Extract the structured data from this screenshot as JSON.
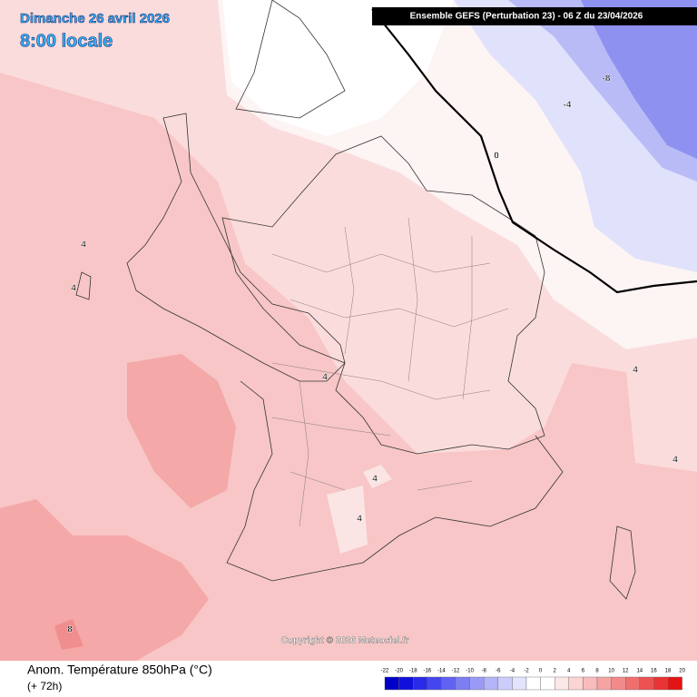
{
  "header": {
    "date": "Dimanche 26 avril 2026",
    "time": "8:00 locale",
    "run": "Ensemble GEFS  (Perturbation 23)  -  06 Z du 23/04/2026"
  },
  "map": {
    "contour_labels": [
      -8,
      -4,
      0,
      4,
      4,
      4,
      4,
      4,
      4,
      4,
      8
    ],
    "copyright": "Copyright © 2026 Meteociel.fr"
  },
  "footer": {
    "variable": "Anom. Température 850hPa (°C)",
    "lead": "(+ 72h)",
    "colorbar": {
      "labels": [
        -22,
        -20,
        -18,
        -16,
        -14,
        -12,
        -10,
        -8,
        -6,
        -4,
        -2,
        0,
        2,
        4,
        6,
        8,
        10,
        12,
        14,
        16,
        18,
        20
      ],
      "colors": [
        "#0000c8",
        "#1010dc",
        "#2a2ae8",
        "#4646ee",
        "#6262f2",
        "#7e7ef4",
        "#9a9af6",
        "#b4b4f8",
        "#cccdfa",
        "#e2e3fc",
        "#ffffff",
        "#ffffff",
        "#fde8e8",
        "#fbd4d4",
        "#f8bcbc",
        "#f5a3a3",
        "#f28a8a",
        "#ef6f6f",
        "#ec5252",
        "#e83434",
        "#e41414"
      ]
    }
  }
}
